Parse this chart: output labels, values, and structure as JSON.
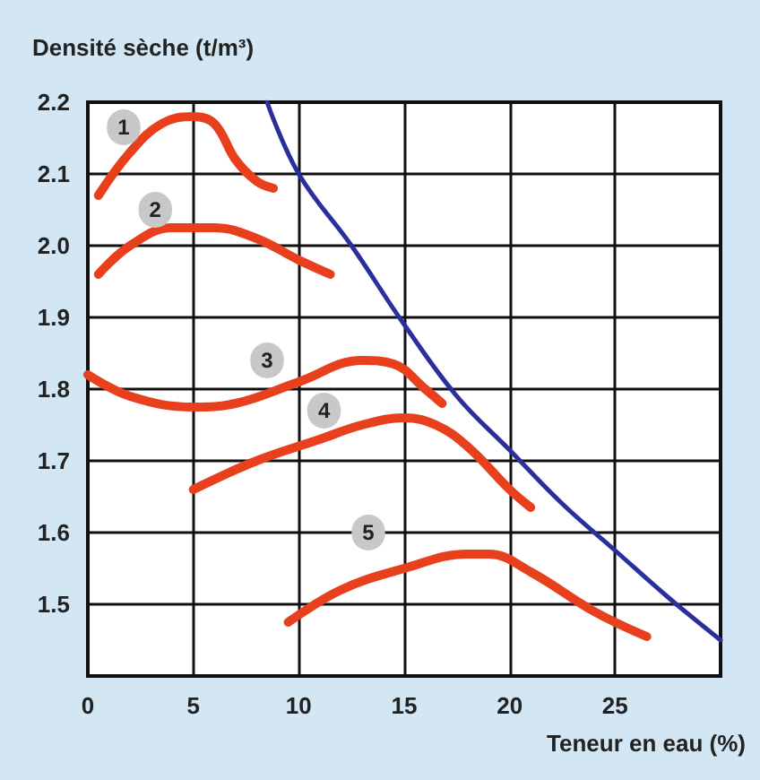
{
  "chart_data": {
    "type": "line",
    "xlabel": "Teneur en eau (%)",
    "ylabel": "Densité sèche (t/m³)",
    "xlim": [
      0,
      30
    ],
    "xticks": [
      0,
      5,
      10,
      15,
      20,
      25
    ],
    "ylim": [
      1.4,
      2.2
    ],
    "yticks": [
      {
        "value": 1.4,
        "label": null
      },
      {
        "value": 1.5,
        "label": "1.5"
      },
      {
        "value": 1.6,
        "label": "1.6"
      },
      {
        "value": 1.7,
        "label": "1.7"
      },
      {
        "value": 1.8,
        "label": "1.8"
      },
      {
        "value": 1.9,
        "label": "1.9"
      },
      {
        "value": 2.0,
        "label": "2.0"
      },
      {
        "value": 2.1,
        "label": "2.1"
      },
      {
        "value": 2.2,
        "label": "2.2"
      }
    ],
    "grid": true,
    "marker": "none",
    "line_style": "solid",
    "series": [
      {
        "color": "#e8401c",
        "x": [
          0.5,
          2,
          3.5,
          5,
          6,
          7,
          8,
          8.8
        ],
        "values": [
          2.07,
          2.13,
          2.17,
          2.18,
          2.17,
          2.12,
          2.09,
          2.08
        ]
      },
      {
        "color": "#e8401c",
        "x": [
          0.5,
          2,
          4,
          6,
          8,
          10,
          11.5
        ],
        "values": [
          1.96,
          2.0,
          2.025,
          2.025,
          2.01,
          1.98,
          1.96
        ]
      },
      {
        "color": "#e8401c",
        "x": [
          0,
          2,
          5,
          7,
          10,
          13,
          14.5,
          16,
          16.8
        ],
        "values": [
          1.82,
          1.79,
          1.775,
          1.78,
          1.81,
          1.84,
          1.835,
          1.8,
          1.78
        ]
      },
      {
        "color": "#e8401c",
        "x": [
          5,
          8,
          11,
          13,
          15,
          16.5,
          18,
          20,
          21
        ],
        "values": [
          1.66,
          1.7,
          1.73,
          1.75,
          1.76,
          1.75,
          1.72,
          1.66,
          1.635
        ]
      },
      {
        "color": "#e8401c",
        "x": [
          9.5,
          12,
          15,
          18,
          19,
          21,
          24,
          26.5
        ],
        "values": [
          1.475,
          1.52,
          1.55,
          1.57,
          1.57,
          1.545,
          1.49,
          1.455
        ]
      },
      {
        "color": "#2b2f9c",
        "x": [
          8.5,
          10,
          12.5,
          15,
          17.5,
          20,
          22.5,
          25,
          27.5,
          30
        ],
        "values": [
          2.2,
          2.1,
          2.0,
          1.89,
          1.79,
          1.715,
          1.64,
          1.575,
          1.51,
          1.45
        ]
      }
    ],
    "annotations": [
      {
        "text": "1",
        "x": 1.7,
        "y": 2.165
      },
      {
        "text": "2",
        "x": 3.2,
        "y": 2.05
      },
      {
        "text": "3",
        "x": 8.5,
        "y": 1.84
      },
      {
        "text": "4",
        "x": 11.2,
        "y": 1.77
      },
      {
        "text": "5",
        "x": 13.3,
        "y": 1.6
      }
    ]
  }
}
